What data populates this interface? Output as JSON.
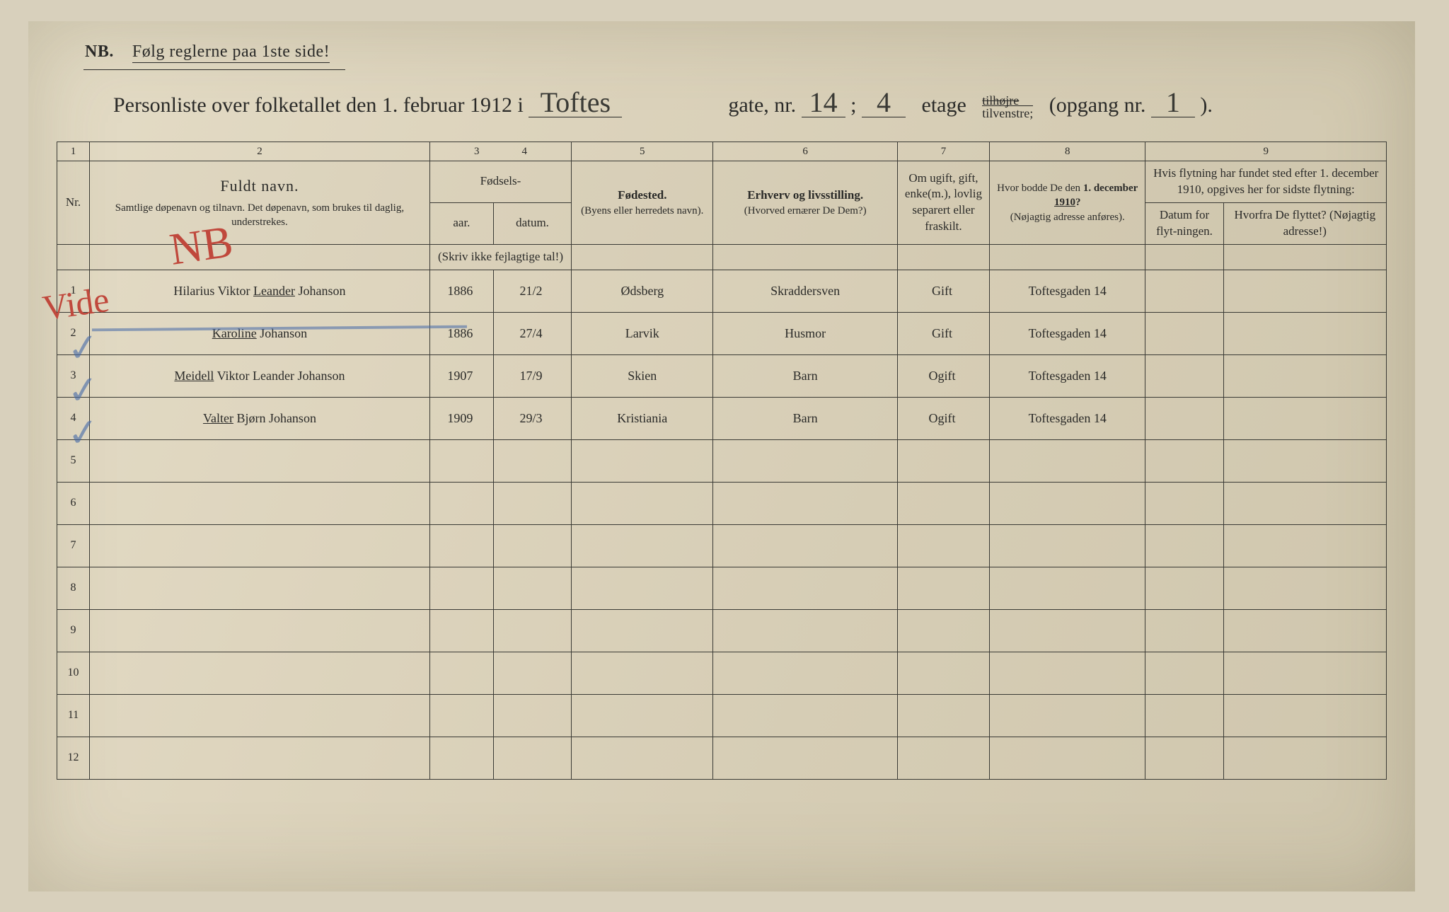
{
  "header": {
    "nb": "NB.",
    "note": "Følg reglerne paa 1ste side!",
    "title_prefix": "Personliste over folketallet den 1. februar 1912 i",
    "street": "Toftes",
    "gate_label": "gate, nr.",
    "gate_nr": "14",
    "semicolon": ";",
    "etage_nr": "4",
    "etage_label": "etage",
    "tilhoire": "tilhøjre",
    "tilvenstre": "tilvenstre;",
    "opgang_label": "(opgang  nr.",
    "opgang_nr": "1",
    "close": ")."
  },
  "colnums": [
    "1",
    "2",
    "3",
    "4",
    "5",
    "6",
    "7",
    "8",
    "9"
  ],
  "columns": {
    "nr": "Nr.",
    "name_main": "Fuldt navn.",
    "name_sub": "Samtlige døpenavn og tilnavn.  Det døpenavn, som brukes til daglig, understrekes.",
    "fodsels": "Fødsels-",
    "aar": "aar.",
    "datum": "datum.",
    "aar_note": "(Skriv ikke fejlagtige tal!)",
    "fodested": "Fødested.",
    "fodested_sub": "(Byens eller herredets navn).",
    "erhverv": "Erhverv og livsstilling.",
    "erhverv_sub": "(Hvorved ernærer De Dem?)",
    "civil": "Om ugift, gift, enke(m.), lovlig separert eller fraskilt.",
    "addr": "Hvor bodde De den 1. december 1910?",
    "addr_sub": "(Nøjagtig adresse anføres).",
    "move_top": "Hvis flytning har fundet sted efter 1. december 1910, opgives her for sidste flytning:",
    "move_date": "Datum for flyt-ningen.",
    "move_from": "Hvorfra De flyttet? (Nøjagtig adresse!)"
  },
  "rows": [
    {
      "nr": "1",
      "name_pre": "Hilarius Viktor ",
      "name_u": "Leander",
      "name_post": " Johanson",
      "aar": "1886",
      "datum": "21/2",
      "sted": "Ødsberg",
      "erhverv": "Skraddersven",
      "civil": "Gift",
      "addr": "Toftesgaden 14",
      "mdate": "",
      "mfrom": ""
    },
    {
      "nr": "2",
      "name_pre": "",
      "name_u": "Karoline",
      "name_post": " Johanson",
      "aar": "1886",
      "datum": "27/4",
      "sted": "Larvik",
      "erhverv": "Husmor",
      "civil": "Gift",
      "addr": "Toftesgaden 14",
      "mdate": "",
      "mfrom": ""
    },
    {
      "nr": "3",
      "name_pre": "",
      "name_u": "Meidell",
      "name_post": " Viktor Leander Johanson",
      "aar": "1907",
      "datum": "17/9",
      "sted": "Skien",
      "erhverv": "Barn",
      "civil": "Ogift",
      "addr": "Toftesgaden 14",
      "mdate": "",
      "mfrom": ""
    },
    {
      "nr": "4",
      "name_pre": "",
      "name_u": "Valter",
      "name_post": " Bjørn Johanson",
      "aar": "1909",
      "datum": "29/3",
      "sted": "Kristiania",
      "erhverv": "Barn",
      "civil": "Ogift",
      "addr": "Toftesgaden 14",
      "mdate": "",
      "mfrom": ""
    },
    {
      "nr": "5",
      "name_pre": "",
      "name_u": "",
      "name_post": "",
      "aar": "",
      "datum": "",
      "sted": "",
      "erhverv": "",
      "civil": "",
      "addr": "",
      "mdate": "",
      "mfrom": ""
    },
    {
      "nr": "6",
      "name_pre": "",
      "name_u": "",
      "name_post": "",
      "aar": "",
      "datum": "",
      "sted": "",
      "erhverv": "",
      "civil": "",
      "addr": "",
      "mdate": "",
      "mfrom": ""
    },
    {
      "nr": "7",
      "name_pre": "",
      "name_u": "",
      "name_post": "",
      "aar": "",
      "datum": "",
      "sted": "",
      "erhverv": "",
      "civil": "",
      "addr": "",
      "mdate": "",
      "mfrom": ""
    },
    {
      "nr": "8",
      "name_pre": "",
      "name_u": "",
      "name_post": "",
      "aar": "",
      "datum": "",
      "sted": "",
      "erhverv": "",
      "civil": "",
      "addr": "",
      "mdate": "",
      "mfrom": ""
    },
    {
      "nr": "9",
      "name_pre": "",
      "name_u": "",
      "name_post": "",
      "aar": "",
      "datum": "",
      "sted": "",
      "erhverv": "",
      "civil": "",
      "addr": "",
      "mdate": "",
      "mfrom": ""
    },
    {
      "nr": "10",
      "name_pre": "",
      "name_u": "",
      "name_post": "",
      "aar": "",
      "datum": "",
      "sted": "",
      "erhverv": "",
      "civil": "",
      "addr": "",
      "mdate": "",
      "mfrom": ""
    },
    {
      "nr": "11",
      "name_pre": "",
      "name_u": "",
      "name_post": "",
      "aar": "",
      "datum": "",
      "sted": "",
      "erhverv": "",
      "civil": "",
      "addr": "",
      "mdate": "",
      "mfrom": ""
    },
    {
      "nr": "12",
      "name_pre": "",
      "name_u": "",
      "name_post": "",
      "aar": "",
      "datum": "",
      "sted": "",
      "erhverv": "",
      "civil": "",
      "addr": "",
      "mdate": "",
      "mfrom": ""
    }
  ],
  "marks": {
    "red_big": "NB",
    "red_side": "Vide"
  },
  "colors": {
    "paper": "#ddd4bd",
    "ink": "#2a2a28",
    "handwriting": "#3a3830",
    "red_pencil": "#c0483c",
    "blue_pencil": "#4368a8"
  }
}
